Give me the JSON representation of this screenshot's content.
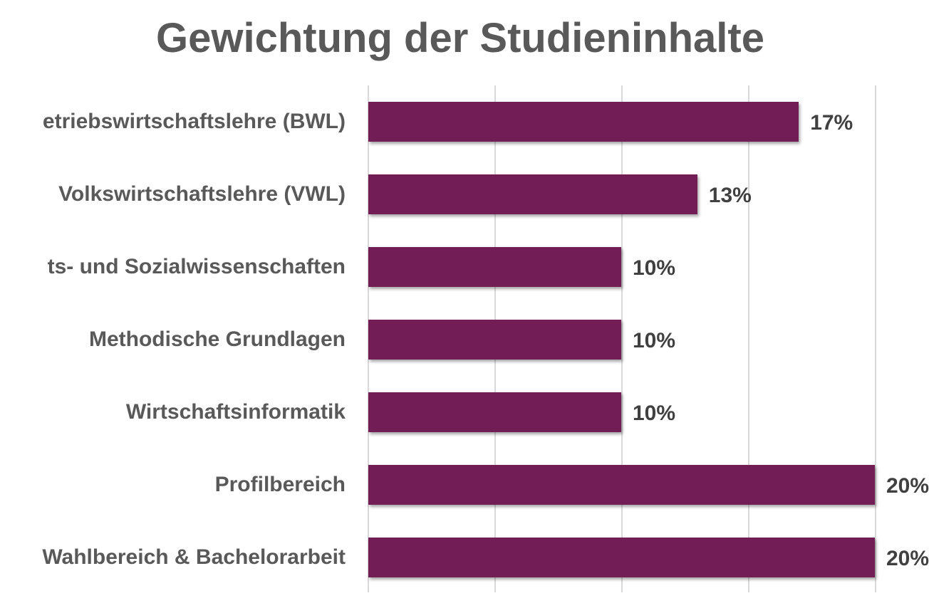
{
  "title": "Gewichtung der Studieninhalte",
  "colors": {
    "bar": "#731d57",
    "grid": "#d9d9d9",
    "label": "#595959",
    "value": "#404040"
  },
  "chart_data": {
    "type": "bar",
    "orientation": "horizontal",
    "title": "Gewichtung der Studieninhalte",
    "categories": [
      "etriebswirtschaftslehre (BWL)",
      "Volkswirtschaftslehre (VWL)",
      "ts- und Sozialwissenschaften",
      "Methodische Grundlagen",
      "Wirtschaftsinformatik",
      "Profilbereich",
      "Wahlbereich & Bachelorarbeit"
    ],
    "values": [
      17,
      13,
      10,
      10,
      10,
      20,
      20
    ],
    "value_labels": [
      "17%",
      "13%",
      "10%",
      "10%",
      "10%",
      "20%",
      "20%"
    ],
    "xlabel": "",
    "ylabel": "",
    "xlim": [
      0,
      20
    ],
    "x_gridlines": [
      0,
      5,
      10,
      15,
      20
    ],
    "grid": true,
    "legend": null,
    "unit": "%"
  }
}
